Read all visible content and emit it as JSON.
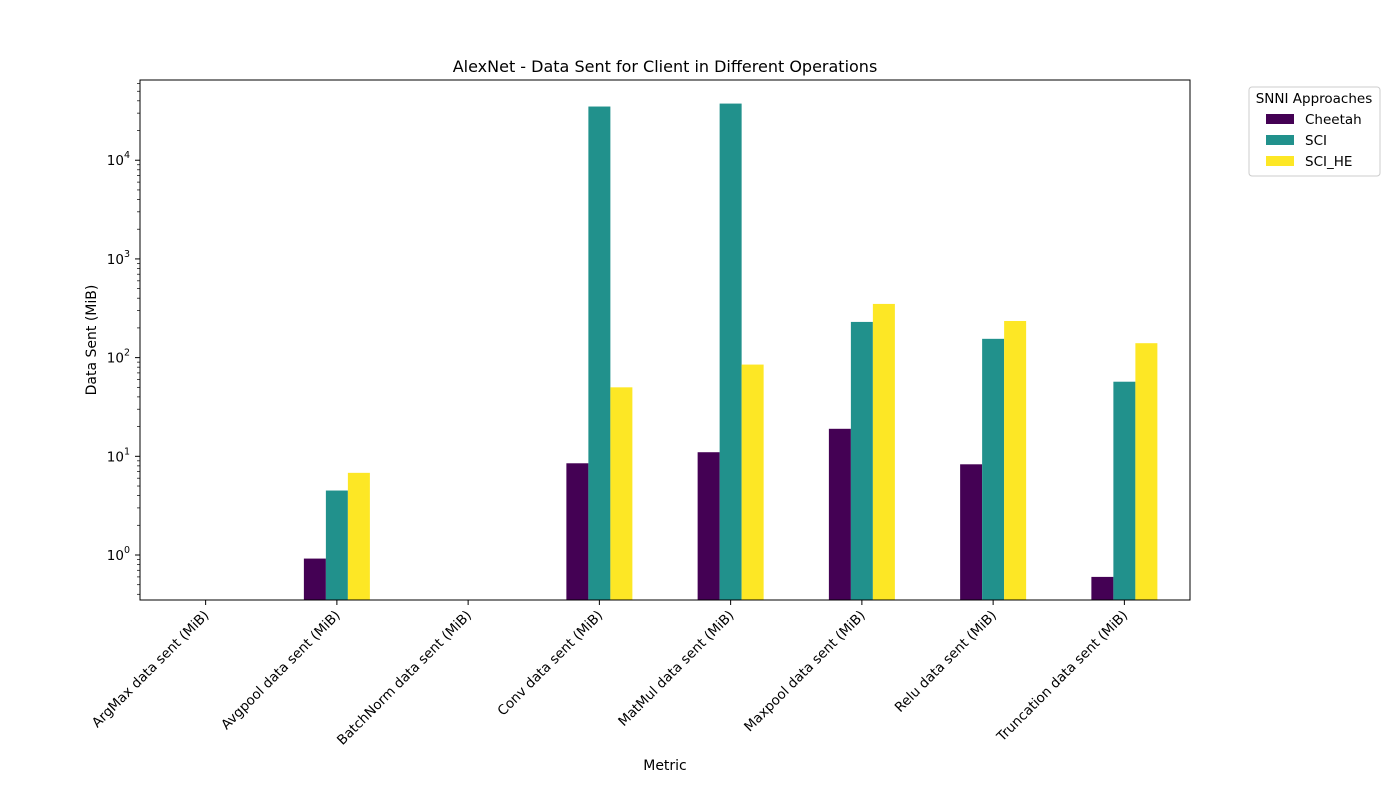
{
  "chart_data": {
    "type": "bar",
    "title": "AlexNet - Data Sent for Client in Different Operations",
    "xlabel": "Metric",
    "ylabel": "Data Sent (MiB)",
    "yscale": "log",
    "ylim": [
      0.35,
      65000
    ],
    "y_ticks": [
      {
        "value": 1,
        "base": "10",
        "exp": "0"
      },
      {
        "value": 10,
        "base": "10",
        "exp": "1"
      },
      {
        "value": 100,
        "base": "10",
        "exp": "2"
      },
      {
        "value": 1000,
        "base": "10",
        "exp": "3"
      },
      {
        "value": 10000,
        "base": "10",
        "exp": "4"
      }
    ],
    "categories": [
      "ArgMax data sent (MiB)",
      "Avgpool data sent (MiB)",
      "BatchNorm data sent (MiB)",
      "Conv data sent (MiB)",
      "MatMul data sent (MiB)",
      "Maxpool data sent (MiB)",
      "Relu data sent (MiB)",
      "Truncation data sent (MiB)"
    ],
    "series": [
      {
        "name": "Cheetah",
        "color": "#440154",
        "values": [
          null,
          0.92,
          null,
          8.5,
          11.0,
          19.0,
          8.3,
          0.6
        ]
      },
      {
        "name": "SCI",
        "color": "#21918c",
        "values": [
          null,
          4.5,
          null,
          35000,
          37500,
          230,
          155,
          57
        ]
      },
      {
        "name": "SCI_HE",
        "color": "#fde725",
        "values": [
          null,
          6.8,
          null,
          50,
          85,
          350,
          235,
          140
        ]
      }
    ],
    "grid": false,
    "legend": {
      "title": "SNNI Approaches",
      "placement": "outside top-right"
    }
  }
}
